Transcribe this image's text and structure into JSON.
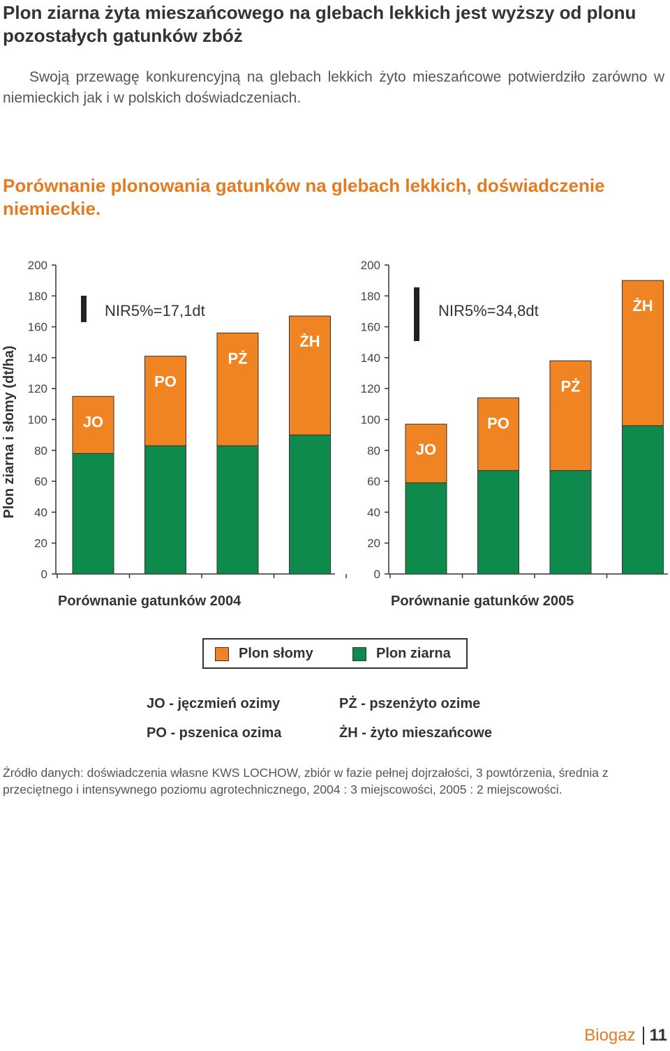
{
  "heading": "Plon ziarna żyta mieszańcowego na glebach lekkich jest wyższy od plonu pozostałych gatunków zbóż",
  "intro": "Swoją przewagę konkurencyjną na glebach lekkich żyto mieszańcowe potwierdziło zarówno w niemieckich jak i w polskich doświadczeniach.",
  "chart_heading": "Porównanie plonowania gatunków na glebach lekkich, doświadczenie niemieckie.",
  "colors": {
    "straw": "#f08423",
    "grain": "#0f8a4d",
    "text": "#333333",
    "orange_text": "#e37b22"
  },
  "chart_data": [
    {
      "type": "bar",
      "stacked": true,
      "title": "Porównanie gatunków 2004",
      "ylabel": "Plon ziarna i słomy (dt/ha)",
      "ylim": [
        0,
        200
      ],
      "yticks": [
        0,
        20,
        40,
        60,
        80,
        100,
        120,
        140,
        160,
        180,
        200
      ],
      "categories": [
        "JO",
        "PO",
        "PŻ",
        "ŻH"
      ],
      "series": [
        {
          "name": "Plon ziarna",
          "values": [
            78,
            83,
            83,
            90
          ]
        },
        {
          "name": "Plon słomy",
          "values": [
            37,
            58,
            73,
            77
          ]
        }
      ],
      "error_bar_label": "NIR5%=17,1dt",
      "error_bar_value": 17.1
    },
    {
      "type": "bar",
      "stacked": true,
      "title": "Porównanie gatunków 2005",
      "ylim": [
        0,
        200
      ],
      "yticks": [
        0,
        20,
        40,
        60,
        80,
        100,
        120,
        140,
        160,
        180,
        200
      ],
      "categories": [
        "JO",
        "PO",
        "PŻ",
        "ŻH"
      ],
      "series": [
        {
          "name": "Plon ziarna",
          "values": [
            59,
            67,
            67,
            96
          ]
        },
        {
          "name": "Plon słomy",
          "values": [
            38,
            47,
            71,
            94
          ]
        }
      ],
      "error_bar_label": "NIR5%=34,8dt",
      "error_bar_value": 34.8
    }
  ],
  "legend": {
    "straw": "Plon słomy",
    "grain": "Plon ziarna"
  },
  "abbreviations": {
    "jo": "JO - jęczmień ozimy",
    "po": "PO - pszenica ozima",
    "pz": "PŻ - pszenżyto ozime",
    "zh": "ŻH - żyto mieszańcowe"
  },
  "source": "Źródło danych: doświadczenia własne KWS LOCHOW, zbiór w fazie pełnej dojrzałości, 3 powtórzenia, średnia z przeciętnego i intensywnego poziomu agrotechnicznego, 2004 : 3 miejscowości, 2005 : 2 miejscowości.",
  "footer": {
    "brand": "Biogaz",
    "page": "11"
  }
}
